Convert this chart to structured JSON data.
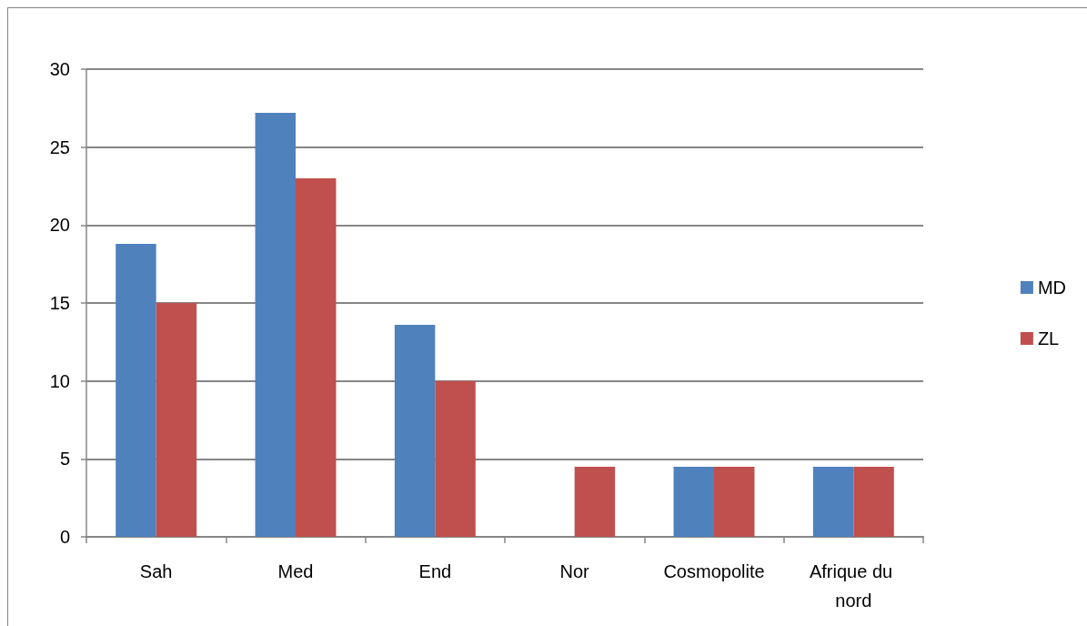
{
  "chart_data": {
    "type": "bar",
    "categories": [
      "Sah",
      "Med",
      "End",
      "Nor",
      "Cosmopolite",
      "Afrique du nord"
    ],
    "series": [
      {
        "name": "MD",
        "color": "#4f81bd",
        "values": [
          18.8,
          27.2,
          13.6,
          0,
          4.5,
          4.5
        ]
      },
      {
        "name": "ZL",
        "color": "#c0504d",
        "values": [
          15,
          23,
          10,
          4.5,
          4.5,
          4.5
        ]
      }
    ],
    "ylim": [
      0,
      30
    ],
    "yticks": [
      0,
      5,
      10,
      15,
      20,
      25,
      30
    ],
    "grid": "y",
    "legend": "right"
  }
}
